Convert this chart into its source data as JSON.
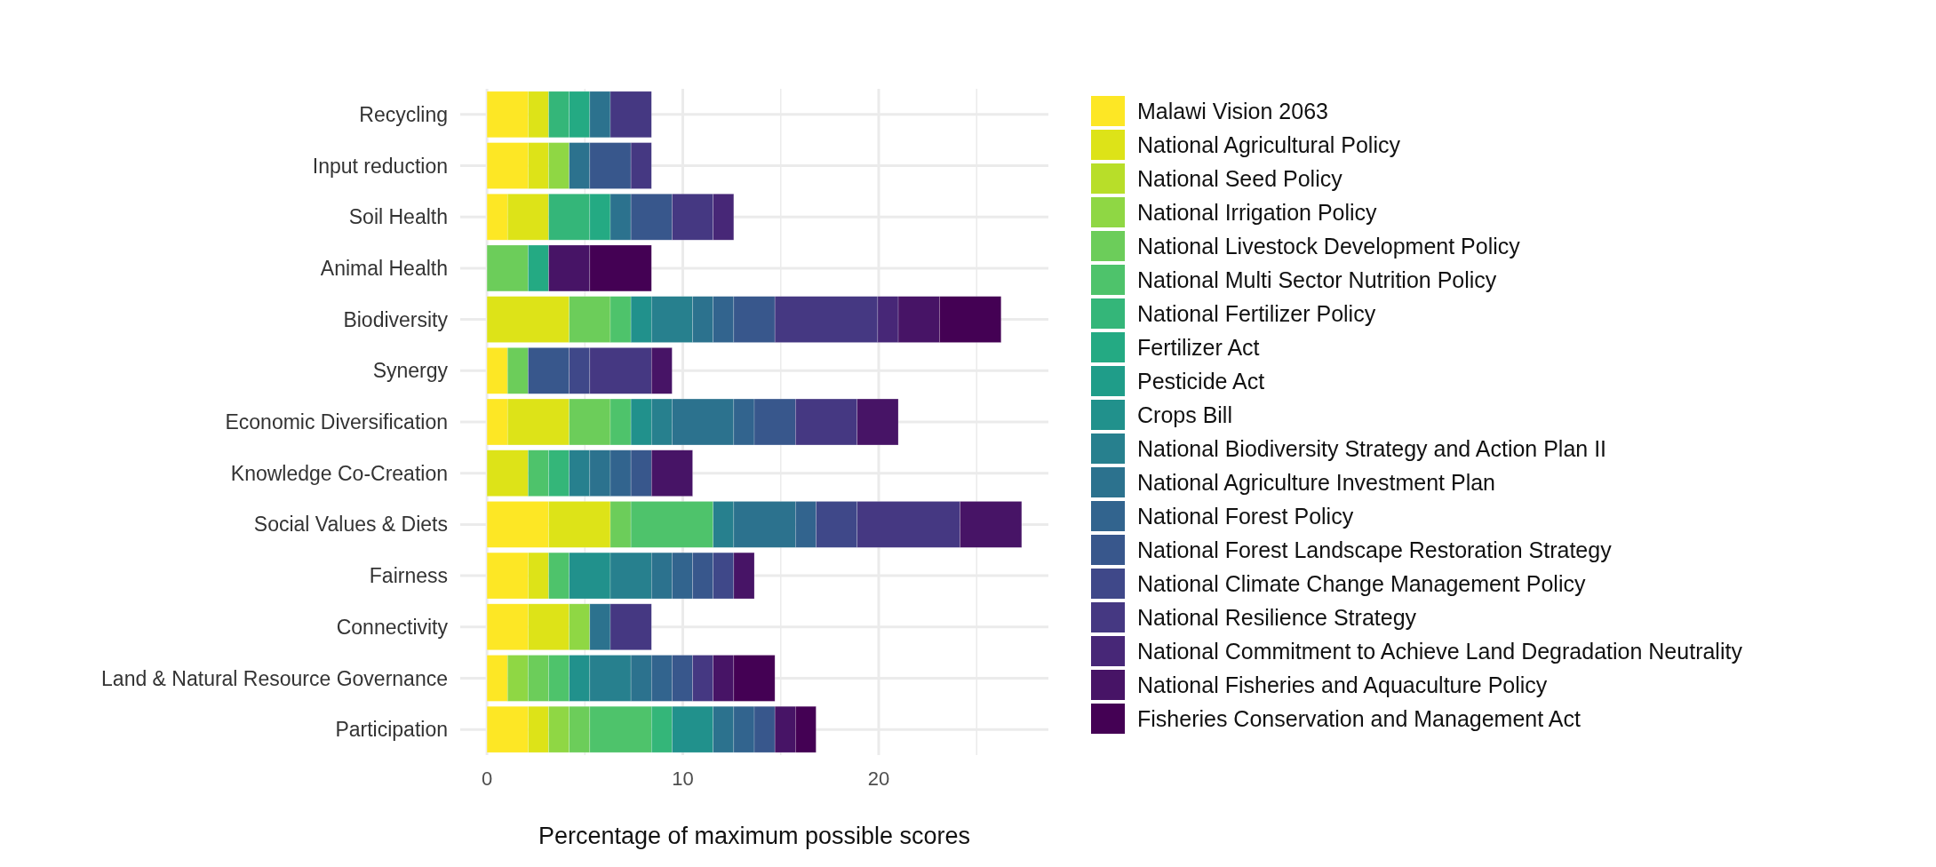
{
  "chart_data": {
    "type": "bar",
    "orientation": "horizontal",
    "stacked": true,
    "xlabel": "Percentage of maximum possible scores",
    "categories": [
      "Recycling",
      "Input reduction",
      "Soil Health",
      "Animal Health",
      "Biodiversity",
      "Synergy",
      "Economic Diversification",
      "Knowledge Co-Creation",
      "Social Values & Diets",
      "Fairness",
      "Connectivity",
      "Land & Natural Resource Governance",
      "Participation"
    ],
    "xlim": [
      -1.365,
      28.665
    ],
    "xticks": [
      0,
      {
        "value": 5,
        "label": null
      },
      10,
      {
        "value": 15,
        "label": null
      },
      20,
      {
        "value": 25,
        "label": null
      }
    ],
    "grid": true,
    "legend": "right",
    "series": [
      {
        "name": "Malawi Vision 2063",
        "color": "#fde725",
        "values": [
          2.1,
          2.1,
          1.05,
          0,
          0,
          1.05,
          1.05,
          0,
          3.15,
          2.1,
          2.1,
          1.05,
          2.1
        ]
      },
      {
        "name": "National Agricultural Policy",
        "color": "#dde318",
        "values": [
          1.05,
          1.05,
          2.1,
          0,
          4.2,
          0,
          3.15,
          2.1,
          3.15,
          1.05,
          2.1,
          0,
          1.05
        ]
      },
      {
        "name": "National Seed Policy",
        "color": "#b8de29",
        "values": [
          0,
          0,
          0,
          0,
          0,
          0,
          0,
          0,
          0,
          0,
          0,
          0,
          0
        ]
      },
      {
        "name": "National Irrigation Policy",
        "color": "#8fd744",
        "values": [
          0,
          1.05,
          0,
          0,
          0,
          0,
          0,
          0,
          0,
          0,
          1.05,
          1.05,
          1.05
        ]
      },
      {
        "name": "National Livestock Development Policy",
        "color": "#6ccd5a",
        "values": [
          0,
          0,
          0,
          2.1,
          2.1,
          1.05,
          2.1,
          0,
          1.05,
          0,
          0,
          1.05,
          1.05
        ]
      },
      {
        "name": "National Multi Sector Nutrition Policy",
        "color": "#4ec36b",
        "values": [
          0,
          0,
          0,
          0,
          1.05,
          0,
          1.05,
          1.05,
          4.2,
          1.05,
          0,
          1.05,
          3.15
        ]
      },
      {
        "name": "National Fertilizer Policy",
        "color": "#34b679",
        "values": [
          1.05,
          0,
          2.1,
          0,
          0,
          0,
          0,
          1.05,
          0,
          0,
          0,
          0,
          1.05
        ]
      },
      {
        "name": "Fertilizer Act",
        "color": "#24aa83",
        "values": [
          1.05,
          0,
          1.05,
          1.05,
          0,
          0,
          0,
          0,
          0,
          0,
          0,
          0,
          0
        ]
      },
      {
        "name": "Pesticide Act",
        "color": "#1f9d89",
        "values": [
          0,
          0,
          0,
          0,
          0,
          0,
          0,
          0,
          0,
          0,
          0,
          0,
          0
        ]
      },
      {
        "name": "Crops Bill",
        "color": "#21918c",
        "values": [
          0,
          0,
          0,
          0,
          1.05,
          0,
          1.05,
          0,
          0,
          2.1,
          0,
          1.05,
          2.1
        ]
      },
      {
        "name": "National Biodiversity Strategy and Action Plan II",
        "color": "#27808e",
        "values": [
          0,
          0,
          0,
          0,
          2.1,
          0,
          1.05,
          1.05,
          1.05,
          2.1,
          0,
          2.1,
          0
        ]
      },
      {
        "name": "National Agriculture Investment Plan",
        "color": "#2c728e",
        "values": [
          1.05,
          1.05,
          1.05,
          0,
          1.05,
          0,
          3.15,
          1.05,
          3.15,
          1.05,
          1.05,
          1.05,
          1.05
        ]
      },
      {
        "name": "National Forest Policy",
        "color": "#32648e",
        "values": [
          0,
          0,
          0,
          0,
          1.05,
          0,
          1.05,
          1.05,
          1.05,
          1.05,
          0,
          1.05,
          1.05
        ]
      },
      {
        "name": "National Forest Landscape Restoration Strategy",
        "color": "#38578c",
        "values": [
          0,
          2.1,
          2.1,
          0,
          2.1,
          2.1,
          2.1,
          1.05,
          0,
          1.05,
          0,
          1.05,
          1.05
        ]
      },
      {
        "name": "National Climate Change Management Policy",
        "color": "#3f4889",
        "values": [
          0,
          0,
          0,
          0,
          0,
          1.05,
          0,
          0,
          2.1,
          1.05,
          0,
          0,
          0
        ]
      },
      {
        "name": "National Resilience Strategy",
        "color": "#453882",
        "values": [
          2.1,
          1.05,
          2.1,
          0,
          5.25,
          3.15,
          3.15,
          0,
          5.25,
          0,
          2.1,
          1.05,
          0
        ]
      },
      {
        "name": "National Commitment to Achieve Land Degradation Neutrality",
        "color": "#472777",
        "values": [
          0,
          0,
          1.05,
          0,
          1.05,
          0,
          0,
          0,
          0,
          0,
          0,
          0,
          0
        ]
      },
      {
        "name": "National Fisheries and Aquaculture Policy",
        "color": "#471466",
        "values": [
          0,
          0,
          0,
          2.1,
          2.1,
          1.05,
          2.1,
          2.1,
          3.15,
          1.05,
          0,
          1.05,
          1.05
        ]
      },
      {
        "name": "Fisheries Conservation and Management Act",
        "color": "#440154",
        "values": [
          0,
          0,
          0,
          3.15,
          3.15,
          0,
          0,
          0,
          0,
          0,
          0,
          2.1,
          1.05
        ]
      }
    ]
  }
}
